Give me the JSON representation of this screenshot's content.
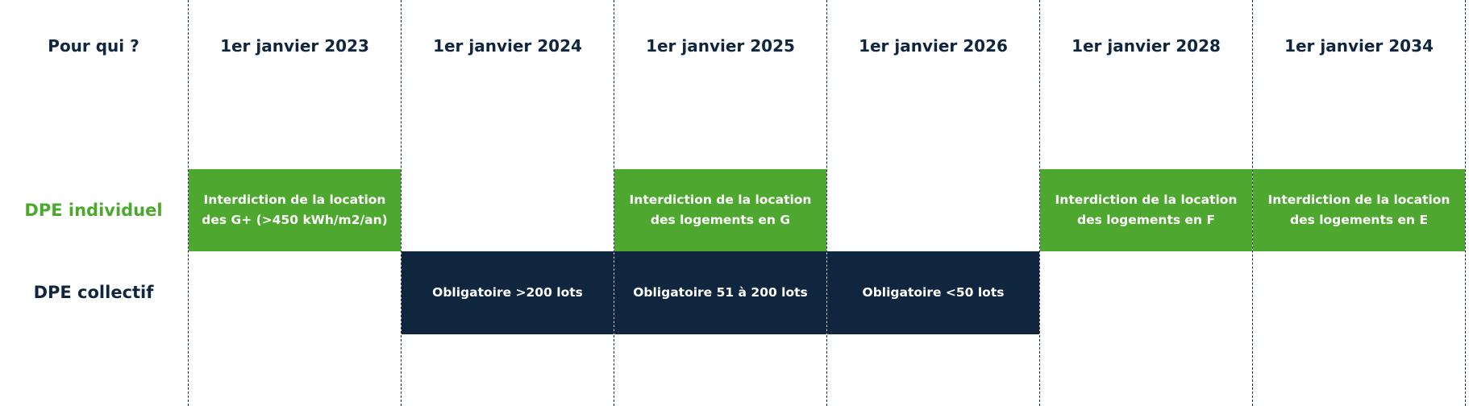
{
  "header": {
    "label": "Pour qui ?",
    "columns": [
      "1er janvier 2023",
      "1er janvier 2024",
      "1er janvier 2025",
      "1er janvier 2026",
      "1er janvier 2028",
      "1er janvier 2034"
    ]
  },
  "rows": {
    "individuel": {
      "label": "DPE individuel",
      "cells": [
        "Interdiction de la location des G+ (>450 kWh/m2/an)",
        "",
        "Interdiction de la location des logements en G",
        "",
        "Interdiction de la location des logements en F",
        "Interdiction de la location des logements en E"
      ]
    },
    "collectif": {
      "label": "DPE collectif",
      "cells": [
        "",
        "Obligatoire >200 lots",
        "Obligatoire 51 à 200 lots",
        "Obligatoire <50 lots",
        "",
        ""
      ]
    }
  },
  "colors": {
    "green": "#4ea72e",
    "navy": "#10263f",
    "divider": "#1a2f4a"
  }
}
